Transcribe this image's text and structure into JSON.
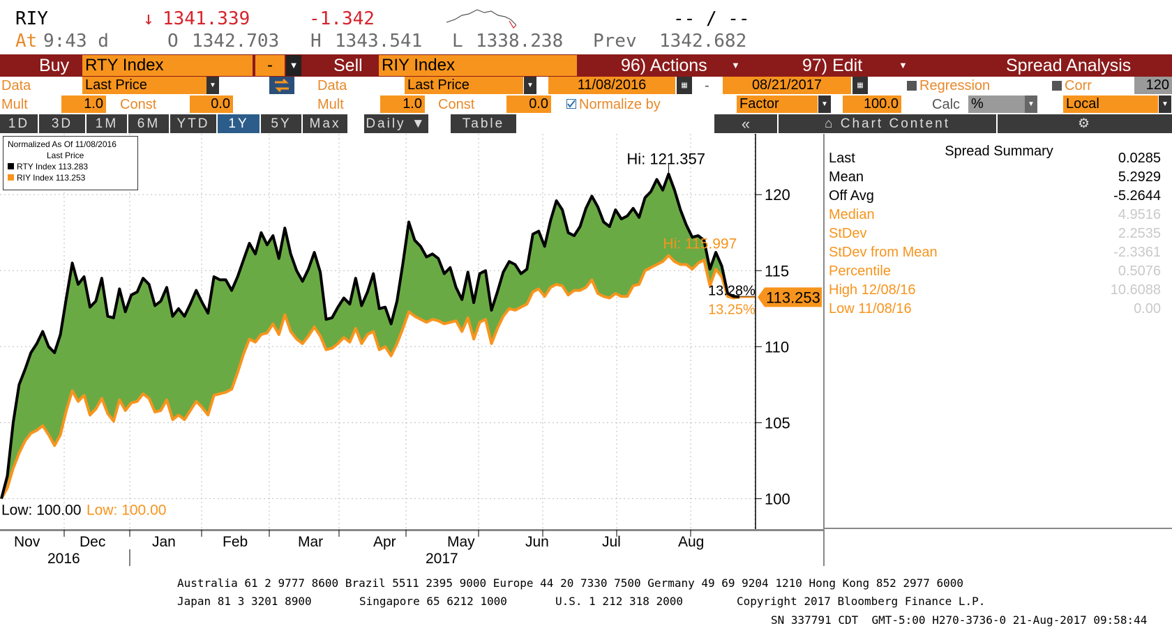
{
  "quote": {
    "ticker": "RIY",
    "last": "1341.339",
    "change": "-1.342",
    "spark_text": "-- / --",
    "at_label": "At",
    "time": "9:43 d",
    "open_label": "O",
    "open": "1342.703",
    "high_label": "H",
    "high": "1343.541",
    "low_label": "L",
    "low": "1338.238",
    "prev_label": "Prev",
    "prev": "1342.682"
  },
  "controls": {
    "buy_label": "Buy",
    "buy_security": "RTY Index",
    "op": "-",
    "sell_label": "Sell",
    "sell_security": "RIY Index",
    "actions": "96) Actions",
    "edit": "97) Edit",
    "title": "Spread Analysis"
  },
  "row1": {
    "data_label": "Data",
    "buy_data": "Last Price",
    "sell_data_label": "Data",
    "sell_data": "Last Price",
    "start_date": "11/08/2016",
    "dash": "-",
    "end_date": "08/21/2017",
    "regression": "Regression",
    "corr": "Corr",
    "corr_val": "120"
  },
  "row2": {
    "mult_label": "Mult",
    "buy_mult": "1.0",
    "const_label": "Const",
    "buy_const": "0.0",
    "sell_mult_label": "Mult",
    "sell_mult": "1.0",
    "sell_const_label": "Const",
    "sell_const": "0.0",
    "normalize": "Normalize by",
    "factor": "Factor",
    "factor_val": "100.0",
    "calc": "Calc",
    "calc_val": "%",
    "local": "Local"
  },
  "tabs": [
    "1D",
    "3D",
    "1M",
    "6M",
    "YTD",
    "1Y",
    "5Y",
    "Max"
  ],
  "active_tab": "1Y",
  "period": "Daily",
  "table_label": "Table",
  "collapse": "«",
  "chart_content": "Chart Content",
  "legend": {
    "line1": "Normalized As Of 11/08/2016",
    "line2": "Last Price",
    "s1": "RTY Index  113.283",
    "s2": "RIY Index  113.253"
  },
  "annotations": {
    "hi_rty": "Hi: 121.357",
    "hi_riy": "Hi: 115.997",
    "low_rty": "Low: 100.00",
    "low_riy": "Low: 100.00",
    "pct_rty": "13.28%",
    "pct_riy": "13.25%",
    "last_tag": "113.253"
  },
  "summary": {
    "title": "Spread Summary",
    "rows": [
      {
        "label": "Last",
        "value": "0.0285"
      },
      {
        "label": "Mean",
        "value": "5.2929"
      },
      {
        "label": "Off Avg",
        "value": "-5.2644"
      },
      {
        "label": "Median",
        "value": "4.9516"
      },
      {
        "label": "StDev",
        "value": "2.2535"
      },
      {
        "label": "StDev from Mean",
        "value": "-2.3361"
      },
      {
        "label": "Percentile",
        "value": "0.5076"
      },
      {
        "label": "High 12/08/16",
        "value": "10.6088"
      },
      {
        "label": "Low 11/08/16",
        "value": "0.00"
      }
    ]
  },
  "footer": {
    "line1": "Australia 61 2 9777 8600 Brazil 5511 2395 9000 Europe 44 20 7330 7500 Germany 49 69 9204 1210 Hong Kong 852 2977 6000",
    "line2a": "Japan 81 3 3201 8900",
    "line2b": "Singapore 65 6212 1000",
    "line2c": "U.S. 1 212 318 2000",
    "line2d": "Copyright 2017 Bloomberg Finance L.P.",
    "line3": "SN 337791 CDT  GMT-5:00 H270-3736-0 21-Aug-2017 09:58:44"
  },
  "colors": {
    "rty": "#000000",
    "riy": "#f7941d",
    "fill": "#6aaa45",
    "bar": "#8b1a1a",
    "orange": "#f7941d"
  },
  "chart_data": {
    "type": "line",
    "x_labels": [
      "Nov",
      "Dec",
      "Jan",
      "Feb",
      "Mar",
      "Apr",
      "May",
      "Jun",
      "Jul",
      "Aug"
    ],
    "year_labels": [
      "2016",
      "2017"
    ],
    "y_ticks": [
      100,
      105,
      110,
      115,
      120
    ],
    "ylim": [
      98,
      124
    ],
    "series": [
      {
        "name": "RTY Index",
        "values": [
          100.0,
          101.5,
          105.0,
          107.5,
          108.5,
          109.6,
          110.2,
          111.0,
          110.0,
          109.6,
          110.8,
          113.2,
          115.5,
          114.1,
          114.6,
          112.6,
          113.0,
          114.5,
          112.0,
          111.9,
          113.8,
          112.3,
          113.4,
          113.6,
          114.5,
          114.1,
          112.7,
          113.0,
          113.9,
          112.0,
          112.5,
          112.0,
          112.8,
          113.7,
          112.9,
          112.2,
          114.6,
          114.4,
          114.4,
          113.7,
          114.6,
          115.7,
          116.8,
          116.1,
          117.5,
          116.7,
          117.3,
          115.8,
          117.8,
          116.1,
          115.0,
          114.3,
          115.1,
          116.2,
          114.9,
          111.8,
          111.9,
          112.6,
          113.2,
          112.8,
          114.5,
          112.7,
          113.6,
          114.8,
          112.5,
          112.6,
          111.5,
          113.0,
          115.5,
          118.2,
          117.0,
          116.6,
          115.9,
          116.1,
          115.8,
          114.8,
          115.2,
          113.9,
          113.1,
          114.9,
          112.9,
          114.8,
          115.0,
          112.4,
          113.6,
          114.9,
          115.6,
          115.4,
          114.8,
          115.1,
          117.4,
          117.6,
          116.6,
          118.3,
          119.6,
          119.0,
          117.5,
          117.3,
          117.9,
          119.1,
          119.9,
          119.2,
          118.2,
          117.9,
          119.0,
          118.4,
          118.6,
          119.1,
          118.5,
          119.8,
          120.2,
          121.0,
          120.3,
          121.357,
          120.3,
          119.0,
          118.0,
          117.2,
          117.3,
          117.0,
          115.1,
          116.2,
          115.3,
          113.5,
          113.3,
          113.283
        ]
      },
      {
        "name": "RIY Index",
        "values": [
          100.0,
          100.7,
          102.0,
          103.0,
          103.8,
          104.3,
          104.5,
          104.8,
          104.2,
          103.5,
          104.2,
          105.8,
          107.1,
          106.4,
          106.8,
          105.5,
          105.9,
          106.6,
          105.6,
          105.1,
          106.5,
          105.8,
          106.3,
          106.4,
          106.9,
          106.6,
          105.7,
          105.8,
          106.5,
          105.2,
          105.5,
          105.2,
          105.8,
          106.4,
          106.0,
          105.5,
          106.8,
          106.9,
          107.0,
          107.2,
          108.3,
          109.5,
          110.5,
          110.3,
          110.8,
          110.9,
          111.5,
          110.8,
          112.1,
          111.0,
          110.5,
          110.2,
          110.7,
          111.3,
          110.7,
          109.8,
          109.9,
          110.2,
          110.6,
          110.3,
          111.2,
          110.2,
          110.8,
          111.0,
          109.8,
          110.0,
          109.4,
          110.2,
          111.2,
          112.3,
          112.0,
          111.8,
          111.6,
          111.8,
          111.7,
          111.5,
          111.6,
          111.7,
          111.0,
          111.9,
          110.5,
          111.6,
          111.8,
          110.2,
          111.2,
          112.0,
          112.5,
          112.4,
          112.6,
          112.8,
          113.6,
          113.8,
          113.3,
          113.9,
          114.1,
          114.0,
          113.4,
          113.7,
          113.7,
          113.9,
          114.4,
          113.5,
          113.3,
          113.2,
          113.5,
          113.3,
          113.3,
          114.0,
          114.1,
          115.0,
          115.2,
          115.4,
          115.6,
          115.997,
          115.6,
          115.4,
          115.4,
          115.1,
          115.5,
          115.7,
          114.0,
          115.1,
          114.6,
          113.3,
          113.2,
          113.253
        ]
      }
    ],
    "xlabel": "",
    "ylabel": "",
    "legend_position": "top-left",
    "grid": true
  }
}
